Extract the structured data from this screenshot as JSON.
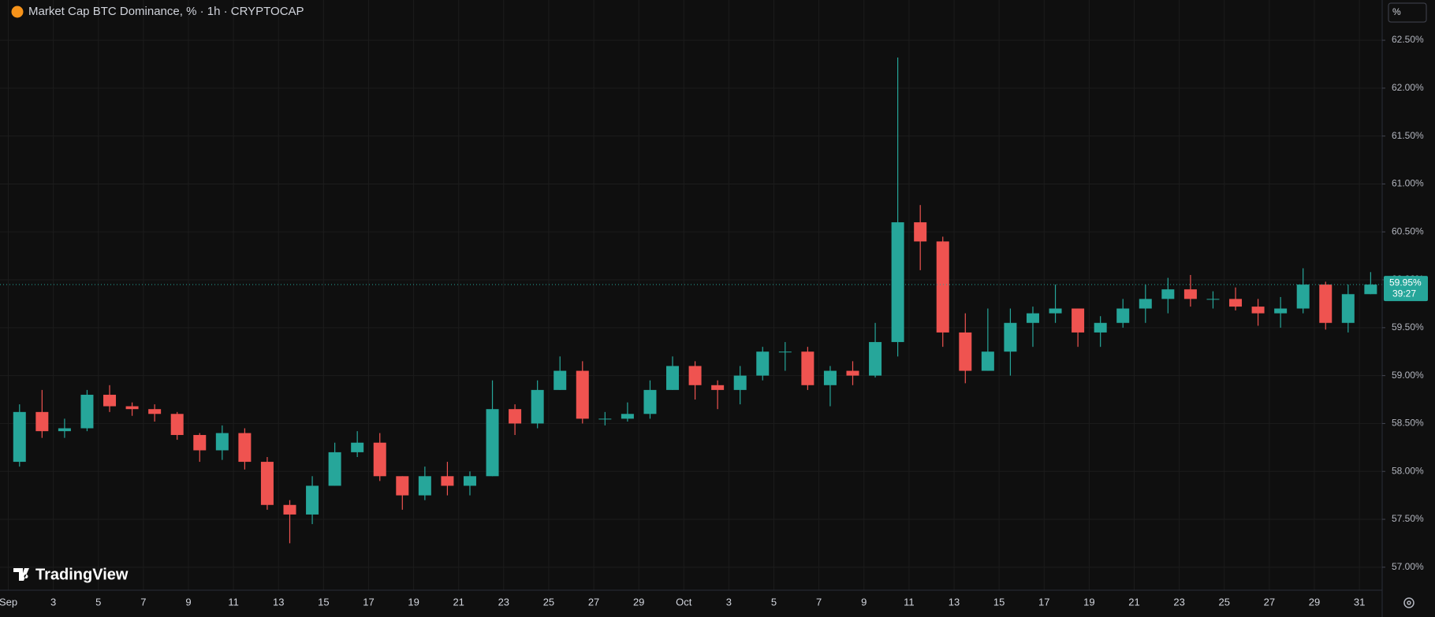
{
  "chart_data": {
    "type": "candlestick",
    "title": "Market Cap BTC Dominance, % · 1h · CRYPTOCAP",
    "brand": "TradingView",
    "scale_button": "%",
    "countdown": "39:27",
    "up_color": "#26a69a",
    "down_color": "#ef5350",
    "grid": true,
    "x": [
      "Sep 1",
      "Sep 2",
      "Sep 3",
      "Sep 4",
      "Sep 5",
      "Sep 6",
      "Sep 7",
      "Sep 8",
      "Sep 9",
      "Sep 10",
      "Sep 11",
      "Sep 12",
      "Sep 13",
      "Sep 14",
      "Sep 15",
      "Sep 16",
      "Sep 17",
      "Sep 18",
      "Sep 19",
      "Sep 20",
      "Sep 21",
      "Sep 22",
      "Sep 23",
      "Sep 24",
      "Sep 25",
      "Sep 26",
      "Sep 27",
      "Sep 28",
      "Sep 29",
      "Sep 30",
      "Oct 1",
      "Oct 2",
      "Oct 3",
      "Oct 4",
      "Oct 5",
      "Oct 6",
      "Oct 7",
      "Oct 8",
      "Oct 9",
      "Oct 10",
      "Oct 11",
      "Oct 12",
      "Oct 13",
      "Oct 14",
      "Oct 15",
      "Oct 16",
      "Oct 17",
      "Oct 18",
      "Oct 19",
      "Oct 20",
      "Oct 21",
      "Oct 22",
      "Oct 23",
      "Oct 24",
      "Oct 25",
      "Oct 26",
      "Oct 27",
      "Oct 28",
      "Oct 29",
      "Oct 30",
      "Oct 31"
    ],
    "open": [
      58.1,
      58.62,
      58.42,
      58.45,
      58.8,
      58.68,
      58.65,
      58.6,
      58.38,
      58.22,
      58.4,
      58.1,
      57.65,
      57.55,
      57.85,
      58.2,
      58.3,
      57.95,
      57.75,
      57.95,
      57.85,
      57.95,
      58.65,
      58.5,
      58.85,
      59.05,
      58.55,
      58.55,
      58.6,
      58.85,
      59.1,
      58.9,
      58.85,
      59.0,
      59.25,
      59.25,
      58.9,
      59.05,
      59.0,
      59.35,
      60.6,
      60.4,
      59.45,
      59.05,
      59.25,
      59.55,
      59.65,
      59.7,
      59.45,
      59.55,
      59.7,
      59.8,
      59.9,
      59.8,
      59.8,
      59.72,
      59.65,
      59.7,
      59.95,
      59.55,
      59.85
    ],
    "high": [
      58.7,
      58.85,
      58.55,
      58.85,
      58.9,
      58.72,
      58.7,
      58.62,
      58.4,
      58.48,
      58.45,
      58.15,
      57.7,
      57.95,
      58.3,
      58.42,
      58.4,
      57.95,
      58.05,
      58.1,
      58.0,
      58.95,
      58.7,
      58.95,
      59.2,
      59.15,
      58.62,
      58.72,
      58.95,
      59.2,
      59.15,
      58.95,
      59.1,
      59.3,
      59.35,
      59.3,
      59.1,
      59.15,
      59.55,
      62.32,
      60.78,
      60.45,
      59.65,
      59.7,
      59.7,
      59.72,
      59.95,
      59.7,
      59.62,
      59.8,
      59.95,
      60.02,
      60.05,
      59.88,
      59.92,
      59.8,
      59.82,
      60.12,
      59.98,
      59.95,
      60.08
    ],
    "low": [
      58.05,
      58.35,
      58.35,
      58.42,
      58.62,
      58.58,
      58.52,
      58.33,
      58.1,
      58.12,
      58.02,
      57.6,
      57.25,
      57.45,
      57.85,
      58.15,
      57.9,
      57.6,
      57.7,
      57.75,
      57.75,
      57.95,
      58.38,
      58.45,
      58.85,
      58.5,
      58.48,
      58.52,
      58.55,
      58.85,
      58.75,
      58.65,
      58.7,
      58.95,
      59.05,
      58.85,
      58.68,
      58.9,
      58.98,
      59.2,
      60.1,
      59.3,
      58.92,
      59.05,
      59.0,
      59.3,
      59.55,
      59.3,
      59.3,
      59.5,
      59.55,
      59.65,
      59.72,
      59.7,
      59.68,
      59.52,
      59.5,
      59.65,
      59.48,
      59.45,
      59.85
    ],
    "close": [
      58.62,
      58.42,
      58.45,
      58.8,
      58.68,
      58.65,
      58.6,
      58.38,
      58.22,
      58.4,
      58.1,
      57.65,
      57.55,
      57.85,
      58.2,
      58.3,
      57.95,
      57.75,
      57.95,
      57.85,
      57.95,
      58.65,
      58.5,
      58.85,
      59.05,
      58.55,
      58.55,
      58.6,
      58.85,
      59.1,
      58.9,
      58.85,
      59.0,
      59.25,
      59.25,
      58.9,
      59.05,
      59.0,
      59.35,
      60.6,
      60.4,
      59.45,
      59.05,
      59.25,
      59.55,
      59.65,
      59.7,
      59.45,
      59.55,
      59.7,
      59.8,
      59.9,
      59.8,
      59.8,
      59.72,
      59.65,
      59.7,
      59.95,
      59.55,
      59.85,
      59.95
    ],
    "last_price": {
      "value": 59.95,
      "label": "59.95%"
    },
    "ylim": [
      56.76,
      62.92
    ],
    "yticks": [
      {
        "value": 57,
        "label": "57.00%"
      },
      {
        "value": 57.5,
        "label": "57.50%"
      },
      {
        "value": 58,
        "label": "58.00%"
      },
      {
        "value": 58.5,
        "label": "58.50%"
      },
      {
        "value": 59,
        "label": "59.00%"
      },
      {
        "value": 59.5,
        "label": "59.50%"
      },
      {
        "value": 60,
        "label": "60.00%"
      },
      {
        "value": 60.5,
        "label": "60.50%"
      },
      {
        "value": 61,
        "label": "61.00%"
      },
      {
        "value": 61.5,
        "label": "61.50%"
      },
      {
        "value": 62,
        "label": "62.00%"
      },
      {
        "value": 62.5,
        "label": "62.50%"
      }
    ],
    "xticks": [
      {
        "value": "Sep 1",
        "label": "Sep"
      },
      {
        "value": "Sep 3",
        "label": "3"
      },
      {
        "value": "Sep 5",
        "label": "5"
      },
      {
        "value": "Sep 7",
        "label": "7"
      },
      {
        "value": "Sep 9",
        "label": "9"
      },
      {
        "value": "Sep 11",
        "label": "11"
      },
      {
        "value": "Sep 13",
        "label": "13"
      },
      {
        "value": "Sep 15",
        "label": "15"
      },
      {
        "value": "Sep 17",
        "label": "17"
      },
      {
        "value": "Sep 19",
        "label": "19"
      },
      {
        "value": "Sep 21",
        "label": "21"
      },
      {
        "value": "Sep 23",
        "label": "23"
      },
      {
        "value": "Sep 25",
        "label": "25"
      },
      {
        "value": "Sep 27",
        "label": "27"
      },
      {
        "value": "Sep 29",
        "label": "29"
      },
      {
        "value": "Oct 1",
        "label": "Oct"
      },
      {
        "value": "Oct 3",
        "label": "3"
      },
      {
        "value": "Oct 5",
        "label": "5"
      },
      {
        "value": "Oct 7",
        "label": "7"
      },
      {
        "value": "Oct 9",
        "label": "9"
      },
      {
        "value": "Oct 11",
        "label": "11"
      },
      {
        "value": "Oct 13",
        "label": "13"
      },
      {
        "value": "Oct 15",
        "label": "15"
      },
      {
        "value": "Oct 17",
        "label": "17"
      },
      {
        "value": "Oct 19",
        "label": "19"
      },
      {
        "value": "Oct 21",
        "label": "21"
      },
      {
        "value": "Oct 23",
        "label": "23"
      },
      {
        "value": "Oct 25",
        "label": "25"
      },
      {
        "value": "Oct 27",
        "label": "27"
      },
      {
        "value": "Oct 29",
        "label": "29"
      },
      {
        "value": "Oct 31",
        "label": "31"
      }
    ]
  }
}
